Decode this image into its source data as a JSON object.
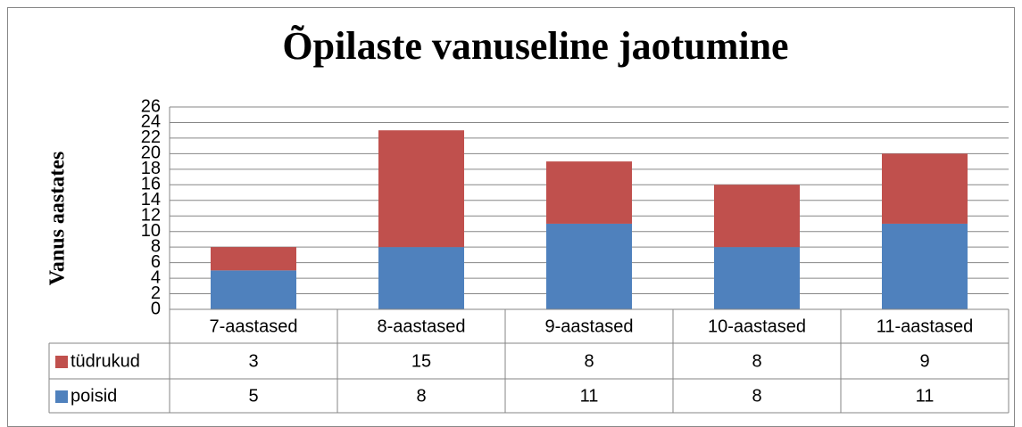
{
  "chart_data": {
    "type": "stacked_bar",
    "title": "Õpilaste vanuseline jaotumine",
    "y_label": "Vanus aastates",
    "categories": [
      "7-aastased",
      "8-aastased",
      "9-aastased",
      "10-aastased",
      "11-aastased"
    ],
    "series": [
      {
        "name": "tüdrukud",
        "color": "#c0504d",
        "values": [
          3,
          15,
          8,
          8,
          9
        ]
      },
      {
        "name": "poisid",
        "color": "#4f81bd",
        "values": [
          5,
          8,
          11,
          8,
          11
        ]
      }
    ],
    "ylim": [
      0,
      26
    ],
    "yticks": [
      0,
      2,
      4,
      6,
      8,
      10,
      12,
      14,
      16,
      18,
      20,
      22,
      24,
      26
    ],
    "grid": true,
    "data_table": true
  }
}
